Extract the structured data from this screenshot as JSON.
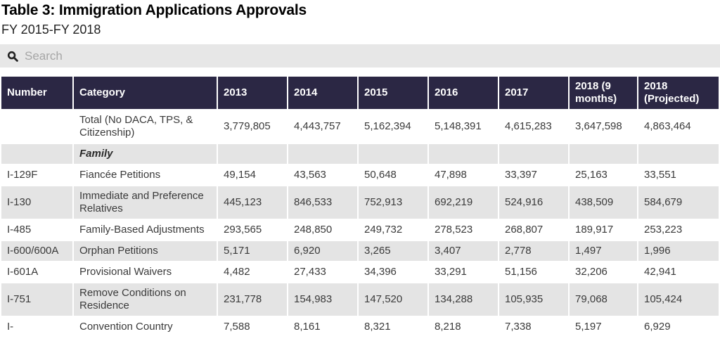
{
  "page": {
    "title": "Table 3: Immigration Applications Approvals",
    "subtitle": "FY 2015-FY 2018"
  },
  "search": {
    "placeholder": "Search",
    "icon": "magnifier-icon"
  },
  "colors": {
    "header_bg": "#2b2744",
    "header_text": "#ffffff",
    "row_alt_bg": "#e4e4e4",
    "row_bg": "#ffffff",
    "search_bg": "#e7e7e7",
    "body_text": "#3a3a3a"
  },
  "chart_data": {
    "type": "table",
    "title": "Table 3: Immigration Applications Approvals",
    "subtitle": "FY 2015-FY 2018",
    "columns": [
      "Number",
      "Category",
      "2013",
      "2014",
      "2015",
      "2016",
      "2017",
      "2018 (9 months)",
      "2018 (Projected)"
    ],
    "rows": [
      {
        "number": "",
        "category": "Total (No DACA, TPS, & Citizenship)",
        "style": "normal",
        "values": [
          "3,779,805",
          "4,443,757",
          "5,162,394",
          "5,148,391",
          "4,615,283",
          "3,647,598",
          "4,863,464"
        ]
      },
      {
        "number": "",
        "category": "Family",
        "style": "section",
        "values": [
          "",
          "",
          "",
          "",
          "",
          "",
          ""
        ]
      },
      {
        "number": "I-129F",
        "category": "Fiancée Petitions",
        "style": "normal",
        "values": [
          "49,154",
          "43,563",
          "50,648",
          "47,898",
          "33,397",
          "25,163",
          "33,551"
        ]
      },
      {
        "number": "I-130",
        "category": "Immediate and Preference Relatives",
        "style": "normal",
        "values": [
          "445,123",
          "846,533",
          "752,913",
          "692,219",
          "524,916",
          "438,509",
          "584,679"
        ]
      },
      {
        "number": "I-485",
        "category": "Family-Based Adjustments",
        "style": "normal",
        "values": [
          "293,565",
          "248,850",
          "249,732",
          "278,523",
          "268,807",
          "189,917",
          "253,223"
        ]
      },
      {
        "number": "I-600/600A",
        "category": "Orphan Petitions",
        "style": "normal",
        "values": [
          "5,171",
          "6,920",
          "3,265",
          "3,407",
          "2,778",
          "1,497",
          "1,996"
        ]
      },
      {
        "number": "I-601A",
        "category": "Provisional Waivers",
        "style": "normal",
        "values": [
          "4,482",
          "27,433",
          "34,396",
          "33,291",
          "51,156",
          "32,206",
          "42,941"
        ]
      },
      {
        "number": "I-751",
        "category": "Remove Conditions on Residence",
        "style": "normal",
        "values": [
          "231,778",
          "154,983",
          "147,520",
          "134,288",
          "105,935",
          "79,068",
          "105,424"
        ]
      },
      {
        "number": "I-",
        "category": "Convention Country",
        "style": "normal",
        "values": [
          "7,588",
          "8,161",
          "8,321",
          "8,218",
          "7,338",
          "5,197",
          "6,929"
        ]
      }
    ]
  }
}
